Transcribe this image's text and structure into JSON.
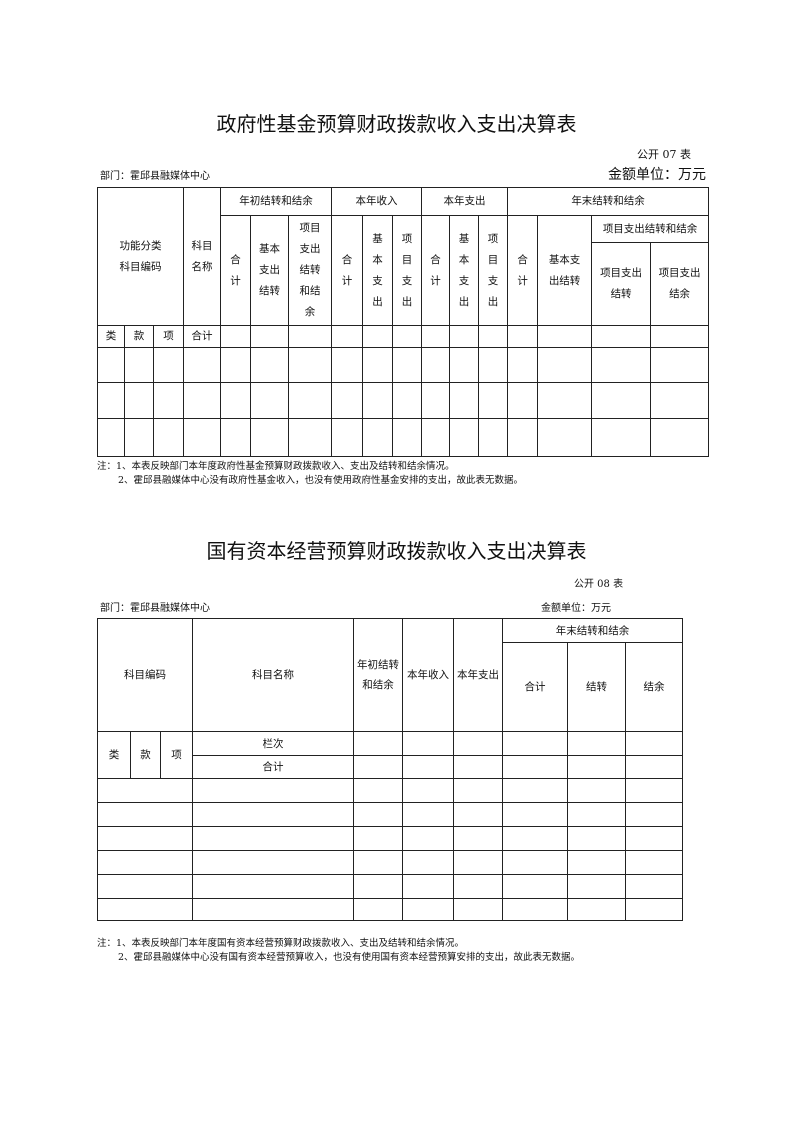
{
  "doc1": {
    "title": "政府性基金预算财政拨款收入支出决算表",
    "table_no": "公开 07 表",
    "department": "部门：霍邱县融媒体中心",
    "unit": "金额单位：万元",
    "headers": {
      "func_code": "功能分类\n科目编码",
      "subject_name": "科目\n名称",
      "begin": "年初结转和结余",
      "income": "本年收入",
      "expense": "本年支出",
      "end": "年末结转和结余",
      "begin_total": "合\n计",
      "begin_basic": "基本\n支出\n结转",
      "begin_project": "项目\n支出\n结转\n和结\n余",
      "income_total": "合\n计",
      "income_basic": "基\n本\n支\n出",
      "income_project": "项\n目\n支\n出",
      "expense_total": "合\n计",
      "expense_basic": "基\n本\n支\n出",
      "expense_project": "项\n目\n支\n出",
      "end_total": "合\n计",
      "end_basic": "基本支\n出结转",
      "end_project": "项目支出结转和结余",
      "end_project_carry": "项目支出\n结转",
      "end_project_balance": "项目支出\n结余",
      "lei": "类",
      "kuan": "款",
      "xiang": "项",
      "total": "合计"
    },
    "notes": [
      "注：1、本表反映部门本年度政府性基金预算财政拨款收入、支出及结转和结余情况。",
      "2、霍邱县融媒体中心没有政府性基金收入，也没有使用政府性基金安排的支出，故此表无数据。"
    ]
  },
  "doc2": {
    "title": "国有资本经营预算财政拨款收入支出决算表",
    "table_no": "公开 08 表",
    "department": "部门：霍邱县融媒体中心",
    "unit": "金额单位：万元",
    "headers": {
      "code": "科目编码",
      "name": "科目名称",
      "begin": "年初结转\n和结余",
      "income": "本年收入",
      "expense": "本年支出",
      "end": "年末结转和结余",
      "end_total": "合计",
      "end_carry": "结转",
      "end_balance": "结余",
      "lei": "类",
      "kuan": "款",
      "xiang": "项",
      "column_no": "栏次",
      "total": "合计"
    },
    "notes": [
      "注：1、本表反映部门本年度国有资本经营预算财政拨款收入、支出及结转和结余情况。",
      "2、霍邱县融媒体中心没有国有资本经营预算收入，也没有使用国有资本经营预算安排的支出，故此表无数据。"
    ]
  }
}
